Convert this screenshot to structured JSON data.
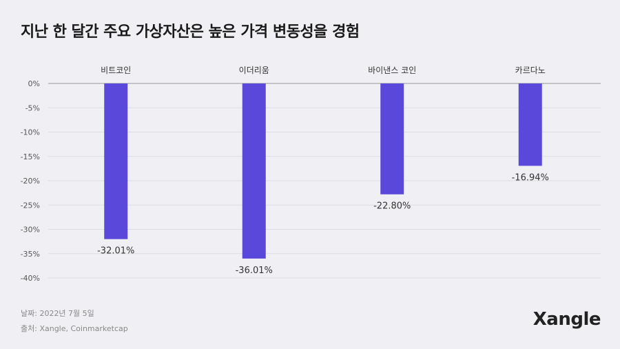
{
  "title": "지난 한 달간 주요 가상자산은 높은 가격 변동성을 경험",
  "footer": {
    "date": "날짜: 2022년 7월 5일",
    "source": "출처: Xangle, Coinmarketcap"
  },
  "logo": "Xangle",
  "colors": {
    "bar": "#5a48db",
    "grid": "#dcdce2",
    "axis": "#999999"
  },
  "chart_data": {
    "type": "bar",
    "categories": [
      "비트코인",
      "이더리움",
      "바이낸스 코인",
      "카르다노"
    ],
    "values": [
      -32.01,
      -36.01,
      -22.8,
      -16.94
    ],
    "value_labels": [
      "-32.01%",
      "-36.01%",
      "-22.80%",
      "-16.94%"
    ],
    "ylim": [
      -40,
      0
    ],
    "yticks": [
      0,
      -5,
      -10,
      -15,
      -20,
      -25,
      -30,
      -35,
      -40
    ],
    "ytick_labels": [
      "0%",
      "-5%",
      "-10%",
      "-15%",
      "-20%",
      "-25%",
      "-30%",
      "-35%",
      "-40%"
    ],
    "grid": true,
    "category_labels_position": "top"
  }
}
